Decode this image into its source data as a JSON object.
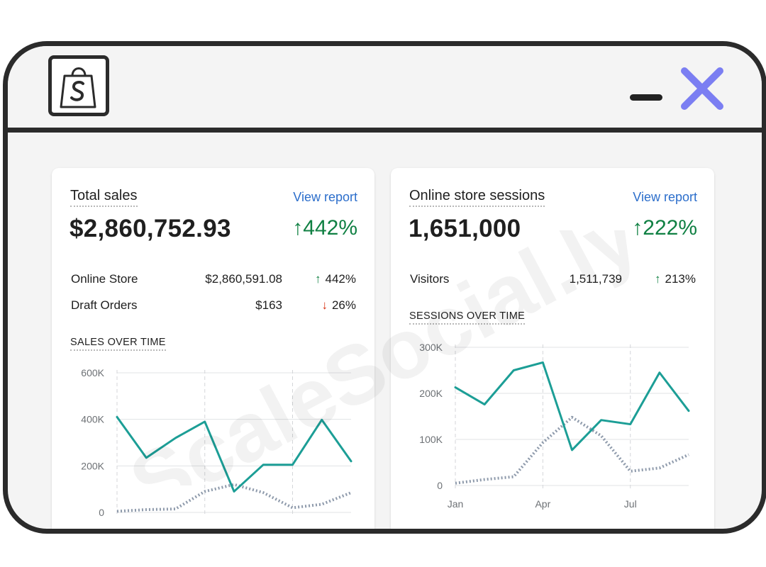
{
  "window": {
    "logo_icon": "shopify-bag-icon",
    "minimize_icon": "minimize-icon",
    "close_icon": "close-icon",
    "close_color": "#7b7ef2"
  },
  "watermark": {
    "text": "ScaleSocial.ly"
  },
  "sales": {
    "title": "Total sales",
    "view_report": "View report",
    "value": "$2,860,752.93",
    "delta": "442%",
    "rows": [
      {
        "label": "Online Store",
        "value": "$2,860,591.08",
        "pct": "442%",
        "direction": "up"
      },
      {
        "label": "Draft Orders",
        "value": "$163",
        "pct": "26%",
        "direction": "down"
      }
    ],
    "chart_title": "SALES OVER TIME"
  },
  "sessions": {
    "title": "Online store sessions",
    "view_report": "View report",
    "value": "1,651,000",
    "delta": "222%",
    "rows": [
      {
        "label": "Visitors",
        "value": "1,511,739",
        "pct": "213%",
        "direction": "up"
      }
    ],
    "chart_title": "SESSIONS OVER TIME"
  },
  "colors": {
    "accent_line": "#1c9e96",
    "compare_line": "#8e9aab",
    "positive": "#108043",
    "negative": "#d72c0d",
    "link": "#2c6ecb"
  },
  "chart_data": [
    {
      "type": "line",
      "title": "SALES OVER TIME",
      "yticks": [
        "600K",
        "400K",
        "200K",
        "0"
      ],
      "ylim": [
        0,
        600000
      ],
      "series": [
        {
          "values": [
            410000,
            235000,
            320000,
            390000,
            90000,
            205000,
            205000,
            398000,
            220000
          ]
        },
        {
          "values": [
            5000,
            12000,
            15000,
            90000,
            120000,
            85000,
            20000,
            35000,
            85000
          ]
        }
      ]
    },
    {
      "type": "line",
      "title": "SESSIONS OVER TIME",
      "xticks": [
        "Jan",
        "Apr",
        "Jul"
      ],
      "yticks": [
        "300K",
        "200K",
        "100K",
        "0"
      ],
      "ylim": [
        0,
        300000
      ],
      "series": [
        {
          "values": [
            213000,
            176000,
            250000,
            267000,
            77000,
            142000,
            133000,
            245000,
            162000
          ]
        },
        {
          "values": [
            5000,
            13000,
            19000,
            93000,
            148000,
            108000,
            31000,
            38000,
            67000
          ]
        }
      ]
    }
  ]
}
